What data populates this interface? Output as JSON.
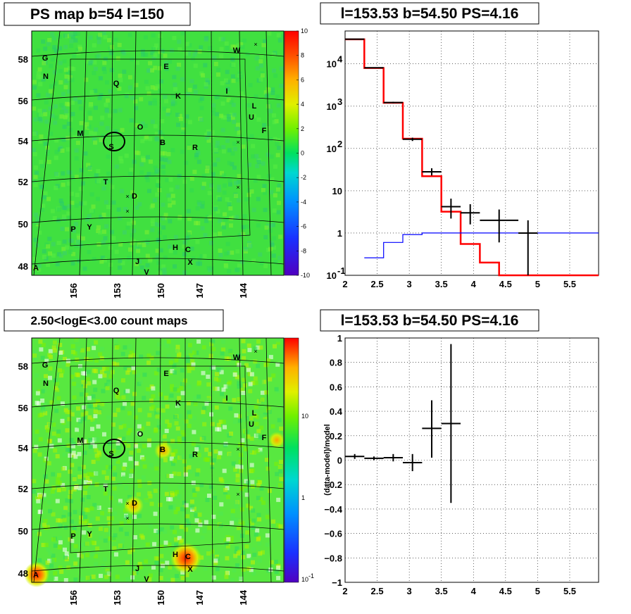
{
  "panels": {
    "top_left_title": "PS map b=54 l=150",
    "top_right_title": "l=153.53 b=54.50 PS=4.16",
    "bottom_left_title": "2.50<logE<3.00 count maps",
    "bottom_right_title": "l=153.53 b=54.50 PS=4.16"
  },
  "maps": {
    "lon_ticks": [
      "156",
      "153",
      "150",
      "147",
      "144"
    ],
    "lat_ticks": [
      "58",
      "56",
      "54",
      "52",
      "50",
      "48"
    ],
    "ps_colorbar_ticks": [
      "10",
      "8",
      "6",
      "4",
      "2",
      "0",
      "-2",
      "-4",
      "-6",
      "-8",
      "-10"
    ],
    "count_colorbar_ticks": [
      "10",
      "1",
      "10"
    ],
    "count_colorbar_exp": "-1",
    "source_labels": [
      "G",
      "N",
      "Q",
      "E",
      "W",
      "K",
      "I",
      "L",
      "U",
      "F",
      "M",
      "O",
      "S",
      "B",
      "R",
      "T",
      "D",
      "P",
      "Y",
      "H",
      "C",
      "X",
      "J",
      "V",
      "A"
    ]
  },
  "chart_data": [
    {
      "type": "line",
      "title": "",
      "xlabel": "",
      "ylabel": "",
      "xlim": [
        2,
        5.95
      ],
      "ylim": [
        0.1,
        60000
      ],
      "yscale": "log",
      "x_ticks": [
        "2",
        "2.5",
        "3",
        "3.5",
        "4",
        "4.5",
        "5",
        "5.5"
      ],
      "y_ticks": [
        {
          "base": "10",
          "exp": "-1"
        },
        {
          "base": "1",
          "exp": ""
        },
        {
          "base": "10",
          "exp": ""
        },
        {
          "base": "10",
          "exp": "2"
        },
        {
          "base": "10",
          "exp": "3"
        },
        {
          "base": "10",
          "exp": "4"
        }
      ],
      "grid": true,
      "series": [
        {
          "style": "step",
          "color": "#ff0000",
          "edges": [
            2.0,
            2.3,
            2.6,
            2.9,
            3.2,
            3.5,
            3.8,
            4.1,
            4.4,
            5.95
          ],
          "values": [
            38000,
            8000,
            1200,
            170,
            22,
            3.2,
            0.55,
            0.2,
            0.1
          ]
        },
        {
          "style": "step",
          "color": "#0000ff",
          "edges": [
            2.3,
            2.6,
            2.9,
            3.2,
            3.5,
            5.95
          ],
          "values": [
            0.26,
            0.6,
            0.92,
            1.0,
            1.0
          ]
        },
        {
          "style": "errorbar",
          "color": "#000000",
          "points": [
            {
              "x": 2.15,
              "xerr": 0.15,
              "y": 38500,
              "ylo": 38000,
              "yhi": 39000
            },
            {
              "x": 2.45,
              "xerr": 0.15,
              "y": 8100,
              "ylo": 8000,
              "yhi": 8200
            },
            {
              "x": 2.75,
              "xerr": 0.15,
              "y": 1220,
              "ylo": 1170,
              "yhi": 1270
            },
            {
              "x": 3.05,
              "xerr": 0.15,
              "y": 165,
              "ylo": 150,
              "yhi": 180
            },
            {
              "x": 3.35,
              "xerr": 0.15,
              "y": 28,
              "ylo": 23,
              "yhi": 34
            },
            {
              "x": 3.65,
              "xerr": 0.15,
              "y": 4.2,
              "ylo": 2.2,
              "yhi": 6.5
            },
            {
              "x": 3.95,
              "xerr": 0.15,
              "y": 3.0,
              "ylo": 1.6,
              "yhi": 4.8
            },
            {
              "x": 4.4,
              "xerr": 0.3,
              "y": 2.0,
              "ylo": 0.6,
              "yhi": 3.6
            },
            {
              "x": 4.85,
              "xerr": 0.15,
              "y": 1.0,
              "ylo": 0.1,
              "yhi": 2.0
            }
          ]
        }
      ]
    },
    {
      "type": "scatter",
      "title": "",
      "xlabel": "",
      "ylabel": "(data-model)/model",
      "xlim": [
        2,
        5.95
      ],
      "ylim": [
        -1,
        1
      ],
      "x_ticks": [
        "2",
        "2.5",
        "3",
        "3.5",
        "4",
        "4.5",
        "5",
        "5.5"
      ],
      "y_ticks": [
        "1",
        "0.8",
        "0.6",
        "0.4",
        "0.2",
        "0",
        "−0.2",
        "−0.4",
        "−0.6",
        "−0.8",
        "−1"
      ],
      "grid": true,
      "points": [
        {
          "x": 2.15,
          "xerr": 0.15,
          "y": 0.03,
          "ylo": 0.01,
          "yhi": 0.05
        },
        {
          "x": 2.45,
          "xerr": 0.15,
          "y": 0.015,
          "ylo": 0.0,
          "yhi": 0.03
        },
        {
          "x": 2.75,
          "xerr": 0.15,
          "y": 0.02,
          "ylo": -0.01,
          "yhi": 0.05
        },
        {
          "x": 3.05,
          "xerr": 0.15,
          "y": -0.02,
          "ylo": -0.09,
          "yhi": 0.05
        },
        {
          "x": 3.35,
          "xerr": 0.15,
          "y": 0.26,
          "ylo": 0.02,
          "yhi": 0.49
        },
        {
          "x": 3.65,
          "xerr": 0.15,
          "y": 0.3,
          "ylo": -0.35,
          "yhi": 0.95
        }
      ]
    }
  ]
}
